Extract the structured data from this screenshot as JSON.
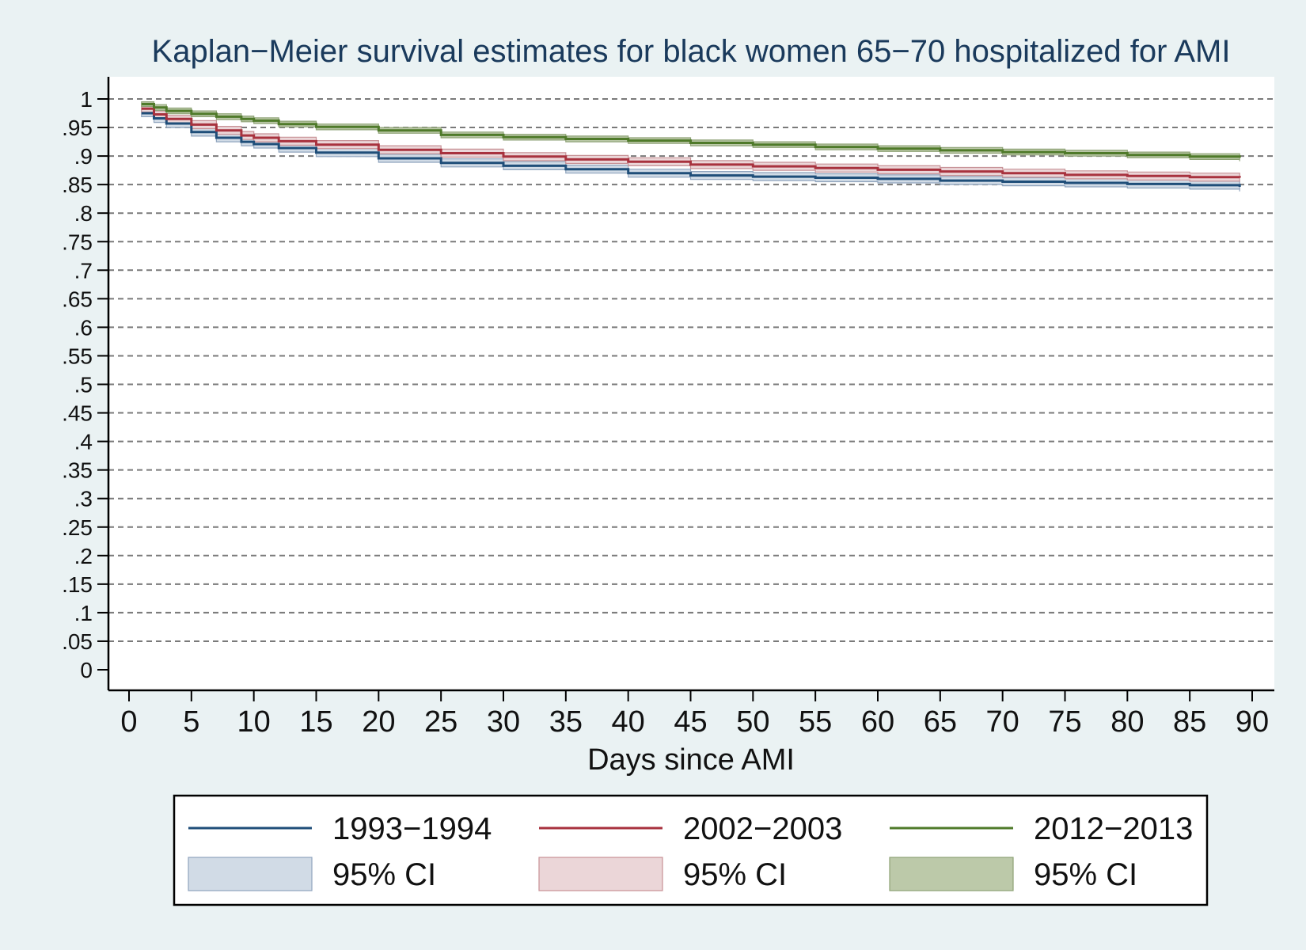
{
  "chart_data": {
    "type": "line",
    "title": "Kaplan−Meier survival estimates for black women 65−70 hospitalized for AMI",
    "xlabel": "Days since AMI",
    "ylabel": "",
    "xlim": [
      0,
      90
    ],
    "ylim": [
      0,
      1
    ],
    "x_ticks": [
      "0",
      "5",
      "10",
      "15",
      "20",
      "25",
      "30",
      "35",
      "40",
      "45",
      "50",
      "55",
      "60",
      "65",
      "70",
      "75",
      "80",
      "85",
      "90"
    ],
    "y_ticks": [
      "0",
      ".05",
      ".1",
      ".15",
      ".2",
      ".25",
      ".3",
      ".35",
      ".4",
      ".45",
      ".5",
      ".55",
      ".6",
      ".65",
      ".7",
      ".75",
      ".8",
      ".85",
      ".9",
      ".95",
      "1"
    ],
    "grid": "horizontal dashed",
    "legend_position": "bottom",
    "x": [
      1,
      2,
      3,
      5,
      7,
      9,
      10,
      12,
      15,
      20,
      25,
      30,
      35,
      40,
      45,
      50,
      55,
      60,
      65,
      70,
      75,
      80,
      85,
      89
    ],
    "series": [
      {
        "name": "1993−1994",
        "color": "#1f4e79",
        "values": [
          0.975,
          0.966,
          0.957,
          0.942,
          0.932,
          0.925,
          0.921,
          0.914,
          0.906,
          0.896,
          0.888,
          0.883,
          0.877,
          0.87,
          0.866,
          0.864,
          0.862,
          0.86,
          0.857,
          0.855,
          0.853,
          0.851,
          0.849,
          0.846
        ],
        "lower": [
          0.969,
          0.959,
          0.95,
          0.935,
          0.925,
          0.918,
          0.914,
          0.907,
          0.899,
          0.889,
          0.881,
          0.876,
          0.87,
          0.863,
          0.859,
          0.857,
          0.855,
          0.853,
          0.85,
          0.848,
          0.846,
          0.844,
          0.842,
          0.838
        ],
        "upper": [
          0.981,
          0.972,
          0.963,
          0.949,
          0.939,
          0.932,
          0.928,
          0.921,
          0.913,
          0.903,
          0.895,
          0.89,
          0.884,
          0.877,
          0.873,
          0.871,
          0.869,
          0.867,
          0.864,
          0.862,
          0.86,
          0.858,
          0.856,
          0.853
        ]
      },
      {
        "name": "2002−2003",
        "color": "#a8323e",
        "values": [
          0.983,
          0.973,
          0.965,
          0.955,
          0.945,
          0.936,
          0.932,
          0.926,
          0.92,
          0.911,
          0.905,
          0.899,
          0.894,
          0.89,
          0.885,
          0.882,
          0.879,
          0.876,
          0.873,
          0.87,
          0.867,
          0.865,
          0.863,
          0.862
        ],
        "lower": [
          0.977,
          0.967,
          0.958,
          0.948,
          0.938,
          0.929,
          0.925,
          0.919,
          0.913,
          0.904,
          0.898,
          0.892,
          0.887,
          0.883,
          0.878,
          0.875,
          0.872,
          0.869,
          0.866,
          0.863,
          0.86,
          0.858,
          0.856,
          0.855
        ],
        "upper": [
          0.988,
          0.979,
          0.971,
          0.962,
          0.952,
          0.943,
          0.939,
          0.933,
          0.927,
          0.918,
          0.912,
          0.906,
          0.901,
          0.897,
          0.892,
          0.889,
          0.886,
          0.883,
          0.88,
          0.877,
          0.874,
          0.872,
          0.87,
          0.869
        ]
      },
      {
        "name": "2012−2013",
        "color": "#4f7a2a",
        "values": [
          0.991,
          0.985,
          0.979,
          0.974,
          0.969,
          0.965,
          0.962,
          0.956,
          0.951,
          0.945,
          0.937,
          0.933,
          0.93,
          0.927,
          0.923,
          0.92,
          0.916,
          0.913,
          0.91,
          0.907,
          0.905,
          0.902,
          0.899,
          0.897
        ],
        "lower": [
          0.987,
          0.98,
          0.974,
          0.969,
          0.964,
          0.96,
          0.957,
          0.951,
          0.946,
          0.94,
          0.932,
          0.928,
          0.925,
          0.922,
          0.918,
          0.915,
          0.911,
          0.908,
          0.905,
          0.902,
          0.9,
          0.897,
          0.894,
          0.891
        ],
        "upper": [
          0.995,
          0.99,
          0.984,
          0.979,
          0.974,
          0.97,
          0.967,
          0.961,
          0.956,
          0.95,
          0.942,
          0.938,
          0.935,
          0.932,
          0.928,
          0.925,
          0.921,
          0.918,
          0.915,
          0.912,
          0.91,
          0.907,
          0.904,
          0.903
        ]
      }
    ],
    "legend": [
      {
        "label": "1993−1994",
        "kind": "line",
        "color": "#1f4e79"
      },
      {
        "label": "2002−2003",
        "kind": "line",
        "color": "#a8323e"
      },
      {
        "label": "2012−2013",
        "kind": "line",
        "color": "#4f7a2a"
      },
      {
        "label": "95% CI",
        "kind": "band",
        "fill": "#d1dbe6",
        "stroke": "#8fa4bd"
      },
      {
        "label": "95% CI",
        "kind": "band",
        "fill": "#ebd6d8",
        "stroke": "#c79196"
      },
      {
        "label": "95% CI",
        "kind": "band",
        "fill": "#bcc9a9",
        "stroke": "#8ea276"
      }
    ]
  }
}
